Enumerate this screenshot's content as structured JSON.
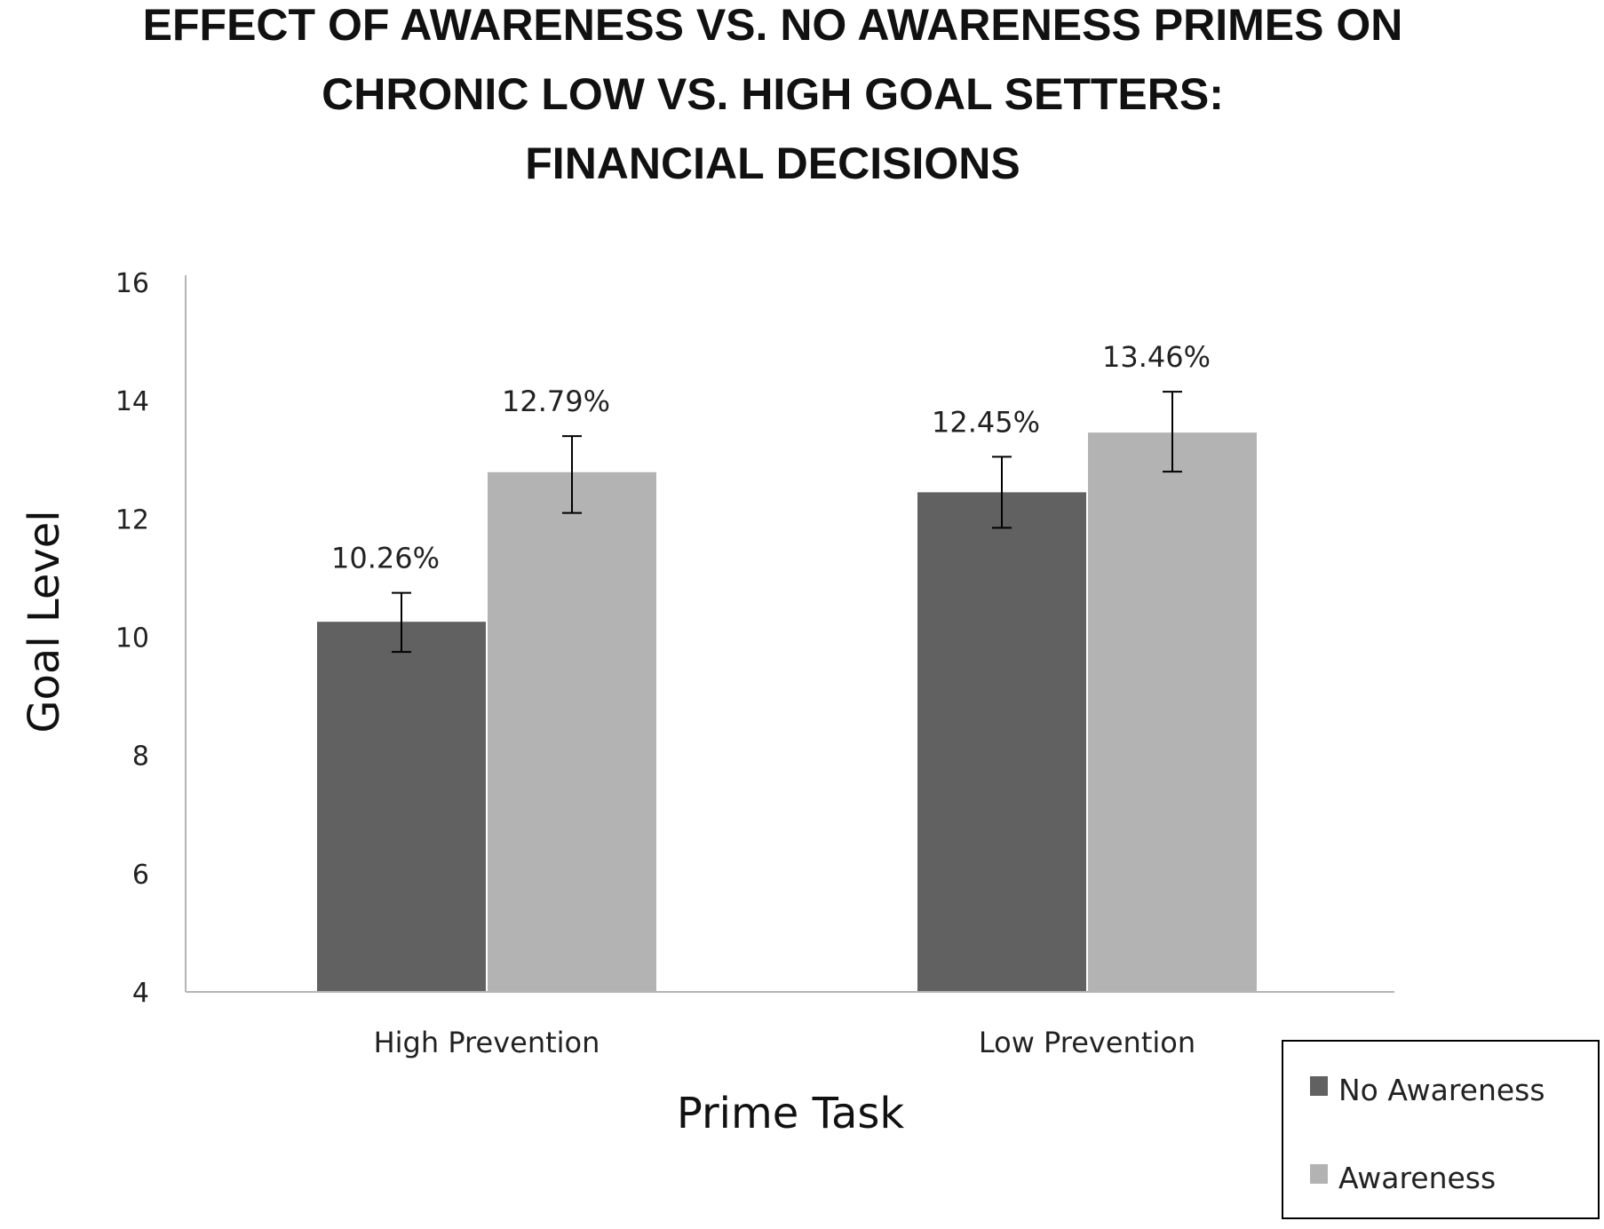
{
  "chart_data": {
    "type": "bar",
    "title_lines": [
      "EFFECT OF AWARENESS VS. NO AWARENESS PRIMES ON",
      "CHRONIC LOW VS. HIGH GOAL SETTERS:",
      "FINANCIAL DECISIONS"
    ],
    "xlabel": "Prime Task",
    "ylabel": "Goal Level",
    "ylim": [
      4,
      16
    ],
    "yticks": [
      4,
      6,
      8,
      10,
      12,
      14,
      16
    ],
    "categories": [
      "High Prevention",
      "Low Prevention"
    ],
    "series": [
      {
        "name": "No Awareness",
        "color": "#616161",
        "values": [
          10.26,
          12.45
        ],
        "labels": [
          "10.26%",
          "12.45%"
        ],
        "error_low": [
          9.75,
          11.85
        ],
        "error_high": [
          10.75,
          13.05
        ]
      },
      {
        "name": "Awareness",
        "color": "#b3b3b3",
        "values": [
          12.79,
          13.46
        ],
        "labels": [
          "12.79%",
          "13.46%"
        ],
        "error_low": [
          12.1,
          12.8
        ],
        "error_high": [
          13.4,
          14.15
        ]
      }
    ],
    "legend_position": "bottom-right",
    "grid": false
  }
}
